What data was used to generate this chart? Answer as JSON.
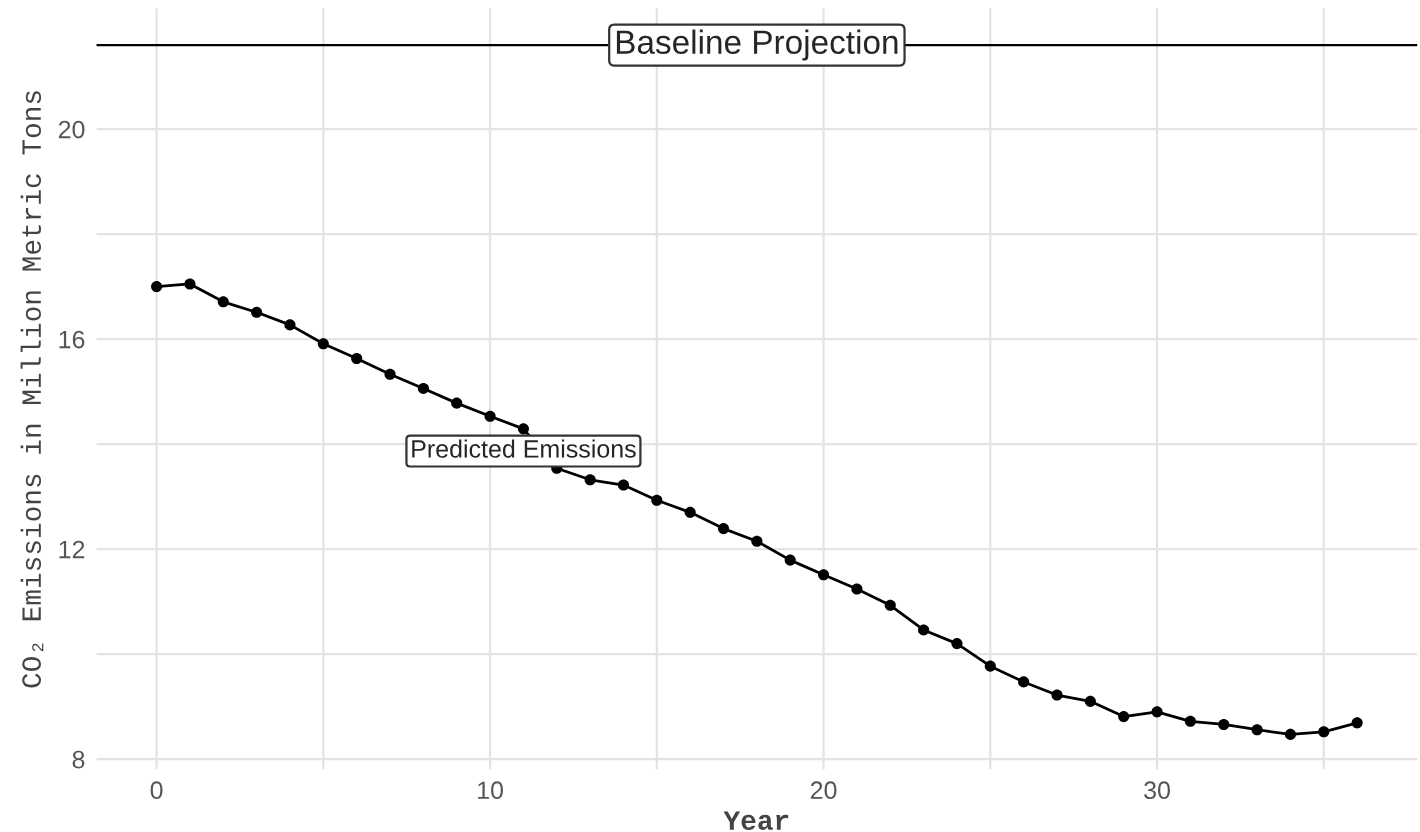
{
  "chart_data": {
    "type": "line",
    "xlabel": "Year",
    "ylabel": "CO₂ Emissions in Million Metric Tons",
    "x": [
      0,
      1,
      2,
      3,
      4,
      5,
      6,
      7,
      8,
      9,
      10,
      11,
      12,
      13,
      14,
      15,
      16,
      17,
      18,
      19,
      20,
      21,
      22,
      23,
      24,
      25,
      26,
      27,
      28,
      29,
      30,
      31,
      32,
      33,
      34,
      35,
      36
    ],
    "series": [
      {
        "color": "#000000",
        "values": [
          17.0,
          17.05,
          16.71,
          16.51,
          16.27,
          15.91,
          15.63,
          15.33,
          15.06,
          14.78,
          14.53,
          14.29,
          13.54,
          13.32,
          13.22,
          12.93,
          12.7,
          12.39,
          12.15,
          11.79,
          11.51,
          11.24,
          10.93,
          10.46,
          10.2,
          9.77,
          9.47,
          9.22,
          9.1,
          8.81,
          8.9,
          8.72,
          8.66,
          8.56,
          8.47,
          8.52,
          8.69
        ]
      }
    ],
    "marker": "circle",
    "line_style": "solid",
    "xlim": [
      -1.8,
      37.8
    ],
    "ylim": [
      7.8,
      22.3
    ],
    "xticks": [
      0,
      {
        "value": 5,
        "label": null
      },
      10,
      {
        "value": 15,
        "label": null
      },
      20,
      {
        "value": 25,
        "label": null
      },
      30,
      {
        "value": 35,
        "label": null
      }
    ],
    "yticks": [
      8,
      {
        "value": 10,
        "label": null
      },
      12,
      {
        "value": 14,
        "label": null
      },
      16,
      {
        "value": 18,
        "label": null
      },
      20
    ],
    "grid": true,
    "ref_lines": [
      {
        "axis": "y",
        "value": 21.6,
        "label": "Baseline Projection",
        "color": "#000000"
      }
    ],
    "annotations": [
      {
        "text": "Predicted Emissions",
        "x": 11,
        "y": 14.29
      }
    ]
  }
}
